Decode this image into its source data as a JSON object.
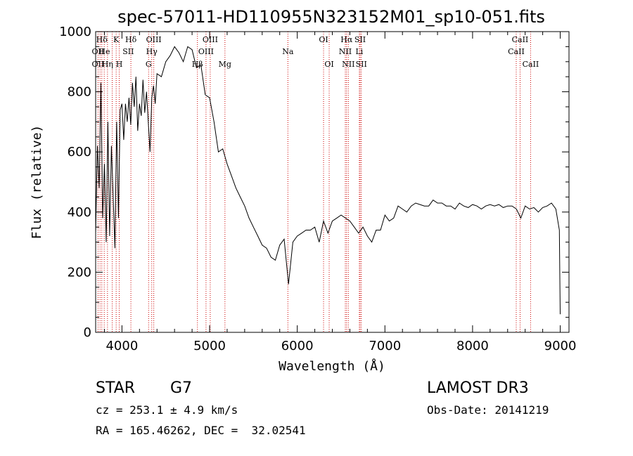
{
  "chart_data": {
    "type": "line",
    "title": "spec-57011-HD110955N323152M01_sp10-051.fits",
    "xlabel": "Wavelength (Å)",
    "ylabel": "Flux (relative)",
    "xlim": [
      3700,
      9100
    ],
    "ylim": [
      0,
      1000
    ],
    "x_ticks": [
      4000,
      5000,
      6000,
      7000,
      8000,
      9000
    ],
    "y_ticks": [
      0,
      200,
      400,
      600,
      800,
      1000
    ],
    "grid": false,
    "series": [
      {
        "x": [
          3700,
          3720,
          3740,
          3760,
          3780,
          3800,
          3820,
          3840,
          3860,
          3880,
          3900,
          3920,
          3940,
          3960,
          3980,
          4000,
          4020,
          4040,
          4060,
          4080,
          4100,
          4120,
          4140,
          4160,
          4180,
          4200,
          4220,
          4240,
          4260,
          4280,
          4300,
          4320,
          4340,
          4360,
          4380,
          4400,
          4450,
          4500,
          4550,
          4600,
          4650,
          4700,
          4750,
          4800,
          4850,
          4900,
          4950,
          5000,
          5050,
          5100,
          5150,
          5200,
          5250,
          5300,
          5350,
          5400,
          5450,
          5500,
          5550,
          5600,
          5650,
          5700,
          5750,
          5800,
          5850,
          5900,
          5950,
          6000,
          6050,
          6100,
          6150,
          6200,
          6250,
          6300,
          6350,
          6400,
          6450,
          6500,
          6550,
          6600,
          6650,
          6700,
          6750,
          6800,
          6850,
          6900,
          6950,
          7000,
          7050,
          7100,
          7150,
          7200,
          7250,
          7300,
          7350,
          7400,
          7450,
          7500,
          7550,
          7600,
          7650,
          7700,
          7750,
          7800,
          7850,
          7900,
          7950,
          8000,
          8050,
          8100,
          8150,
          8200,
          8250,
          8300,
          8350,
          8400,
          8450,
          8500,
          8550,
          8600,
          8650,
          8700,
          8750,
          8800,
          8850,
          8900,
          8950,
          8990,
          9000
        ],
        "y": [
          330,
          620,
          480,
          830,
          380,
          560,
          300,
          700,
          320,
          620,
          450,
          280,
          700,
          380,
          740,
          760,
          640,
          760,
          700,
          780,
          690,
          830,
          750,
          850,
          670,
          760,
          720,
          840,
          730,
          800,
          700,
          600,
          780,
          820,
          760,
          860,
          850,
          900,
          920,
          950,
          930,
          900,
          950,
          940,
          880,
          890,
          790,
          780,
          700,
          600,
          610,
          560,
          520,
          480,
          450,
          420,
          380,
          350,
          320,
          290,
          280,
          250,
          240,
          290,
          310,
          160,
          300,
          320,
          330,
          340,
          340,
          350,
          300,
          370,
          330,
          370,
          380,
          390,
          380,
          370,
          350,
          330,
          350,
          320,
          300,
          340,
          340,
          390,
          370,
          380,
          420,
          410,
          400,
          420,
          430,
          425,
          420,
          420,
          440,
          430,
          430,
          420,
          420,
          410,
          430,
          420,
          415,
          425,
          420,
          410,
          420,
          425,
          420,
          425,
          415,
          420,
          420,
          410,
          380,
          420,
          410,
          415,
          400,
          415,
          420,
          430,
          410,
          340,
          60
        ],
        "color": "#000000"
      }
    ],
    "line_ids": {
      "color": "#cc0000",
      "rows": [
        [
          {
            "label": "Hδ",
            "x": 3770
          },
          {
            "label": "K",
            "x": 3934
          },
          {
            "label": "Hδ",
            "x": 4102
          },
          {
            "label": "OIII",
            "x": 4363
          },
          {
            "label": "OIII",
            "x": 5007
          },
          {
            "label": "OI",
            "x": 6300
          },
          {
            "label": "Hα",
            "x": 6563
          },
          {
            "label": "SII",
            "x": 6717
          },
          {
            "label": "CaII",
            "x": 8542
          }
        ],
        [
          {
            "label": "OII",
            "x": 3727
          },
          {
            "label": "He",
            "x": 3800
          },
          {
            "label": "SII",
            "x": 4072
          },
          {
            "label": "Hγ",
            "x": 4340
          },
          {
            "label": "OIII",
            "x": 4959
          },
          {
            "label": "Na",
            "x": 5893
          },
          {
            "label": "NII",
            "x": 6548
          },
          {
            "label": "Li",
            "x": 6708
          },
          {
            "label": "CaII",
            "x": 8498
          }
        ],
        [
          {
            "label": "OII",
            "x": 3727
          },
          {
            "label": "Hη",
            "x": 3835
          },
          {
            "label": "H",
            "x": 3969
          },
          {
            "label": "G",
            "x": 4304
          },
          {
            "label": "Hβ",
            "x": 4861
          },
          {
            "label": "Mg",
            "x": 5175
          },
          {
            "label": "OI",
            "x": 6364
          },
          {
            "label": "NII",
            "x": 6583
          },
          {
            "label": "SII",
            "x": 6731
          },
          {
            "label": "CaII",
            "x": 8662
          }
        ]
      ],
      "lines_x": [
        3727,
        3750,
        3770,
        3798,
        3835,
        3889,
        3934,
        3969,
        4102,
        4304,
        4340,
        4363,
        4861,
        4959,
        5007,
        5175,
        5893,
        6300,
        6364,
        6548,
        6563,
        6583,
        6708,
        6717,
        6731,
        8498,
        8542,
        8662
      ]
    }
  },
  "info": {
    "object_type": "STAR",
    "subclass": "G7",
    "redshift": "cz = 253.1 ± 4.9 km/s",
    "coords": "RA = 165.46262, DEC =  32.02541",
    "survey": "LAMOST DR3",
    "obs_date": "Obs-Date: 20141219"
  }
}
